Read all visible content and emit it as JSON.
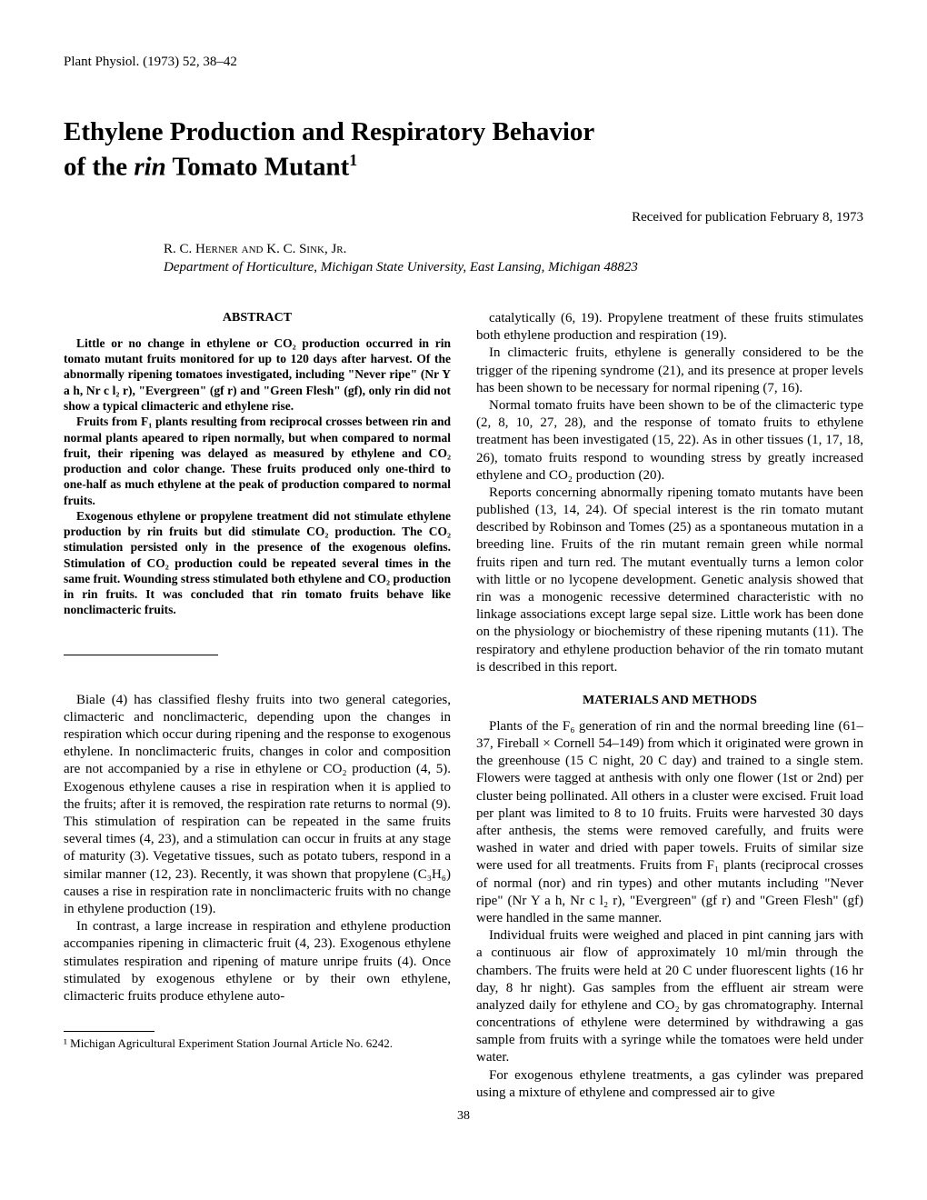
{
  "journal_header": "Plant Physiol. (1973) 52, 38–42",
  "title_line1": "Ethylene Production and Respiratory Behavior",
  "title_line2_prefix": "of the ",
  "title_line2_italic": "rin",
  "title_line2_suffix": " Tomato Mutant",
  "title_superscript": "1",
  "received": "Received for publication February 8, 1973",
  "authors": "R. C. Herner and K. C. Sink, Jr.",
  "affiliation": "Department of Horticulture, Michigan State University, East Lansing, Michigan 48823",
  "abstract_heading": "ABSTRACT",
  "abstract_p1": "Little or no change in ethylene or CO₂ production occurred in rin tomato mutant fruits monitored for up to 120 days after harvest. Of the abnormally ripening tomatoes investigated, including \"Never ripe\" (Nr Y a h, Nr c l₂ r), \"Evergreen\" (gf r) and \"Green Flesh\" (gf), only rin did not show a typical climacteric and ethylene rise.",
  "abstract_p2": "Fruits from F₁ plants resulting from reciprocal crosses between rin and normal plants apeared to ripen normally, but when compared to normal fruit, their ripening was delayed as measured by ethylene and CO₂ production and color change. These fruits produced only one-third to one-half as much ethylene at the peak of production compared to normal fruits.",
  "abstract_p3": "Exogenous ethylene or propylene treatment did not stimulate ethylene production by rin fruits but did stimulate CO₂ production. The CO₂ stimulation persisted only in the presence of the exogenous olefins. Stimulation of CO₂ production could be repeated several times in the same fruit. Wounding stress stimulated both ethylene and CO₂ production in rin fruits. It was concluded that rin tomato fruits behave like nonclimacteric fruits.",
  "intro_p1": "Biale (4) has classified fleshy fruits into two general categories, climacteric and nonclimacteric, depending upon the changes in respiration which occur during ripening and the response to exogenous ethylene. In nonclimacteric fruits, changes in color and composition are not accompanied by a rise in ethylene or CO₂ production (4, 5). Exogenous ethylene causes a rise in respiration when it is applied to the fruits; after it is removed, the respiration rate returns to normal (9). This stimulation of respiration can be repeated in the same fruits several times (4, 23), and a stimulation can occur in fruits at any stage of maturity (3). Vegetative tissues, such as potato tubers, respond in a similar manner (12, 23). Recently, it was shown that propylene (C₃H₆) causes a rise in respiration rate in nonclimacteric fruits with no change in ethylene production (19).",
  "intro_p2": "In contrast, a large increase in respiration and ethylene production accompanies ripening in climacteric fruit (4, 23). Exogenous ethylene stimulates respiration and ripening of mature unripe fruits (4). Once stimulated by exogenous ethylene or by their own ethylene, climacteric fruits produce ethylene auto-",
  "footnote_text": "¹ Michigan Agricultural Experiment Station Journal Article No. 6242.",
  "col2_p1": "catalytically (6, 19). Propylene treatment of these fruits stimulates both ethylene production and respiration (19).",
  "col2_p2": "In climacteric fruits, ethylene is generally considered to be the trigger of the ripening syndrome (21), and its presence at proper levels has been shown to be necessary for normal ripening (7, 16).",
  "col2_p3": "Normal tomato fruits have been shown to be of the climacteric type (2, 8, 10, 27, 28), and the response of tomato fruits to ethylene treatment has been investigated (15, 22). As in other tissues (1, 17, 18, 26), tomato fruits respond to wounding stress by greatly increased ethylene and CO₂ production (20).",
  "col2_p4": "Reports concerning abnormally ripening tomato mutants have been published (13, 14, 24). Of special interest is the rin tomato mutant described by Robinson and Tomes (25) as a spontaneous mutation in a breeding line. Fruits of the rin mutant remain green while normal fruits ripen and turn red. The mutant eventually turns a lemon color with little or no lycopene development. Genetic analysis showed that rin was a monogenic recessive determined characteristic with no linkage associations except large sepal size. Little work has been done on the physiology or biochemistry of these ripening mutants (11). The respiratory and ethylene production behavior of the rin tomato mutant is described in this report.",
  "methods_heading": "MATERIALS AND METHODS",
  "methods_p1": "Plants of the F₆ generation of rin and the normal breeding line (61–37, Fireball × Cornell 54–149) from which it originated were grown in the greenhouse (15 C night, 20 C day) and trained to a single stem. Flowers were tagged at anthesis with only one flower (1st or 2nd) per cluster being pollinated. All others in a cluster were excised. Fruit load per plant was limited to 8 to 10 fruits. Fruits were harvested 30 days after anthesis, the stems were removed carefully, and fruits were washed in water and dried with paper towels. Fruits of similar size were used for all treatments. Fruits from F₁ plants (reciprocal crosses of normal (nor) and rin types) and other mutants including \"Never ripe\" (Nr Y a h, Nr c l₂ r), \"Evergreen\" (gf r) and \"Green Flesh\" (gf) were handled in the same manner.",
  "methods_p2": "Individual fruits were weighed and placed in pint canning jars with a continuous air flow of approximately 10 ml/min through the chambers. The fruits were held at 20 C under fluorescent lights (16 hr day, 8 hr night). Gas samples from the effluent air stream were analyzed daily for ethylene and CO₂ by gas chromatography. Internal concentrations of ethylene were determined by withdrawing a gas sample from fruits with a syringe while the tomatoes were held under water.",
  "methods_p3": "For exogenous ethylene treatments, a gas cylinder was prepared using a mixture of ethylene and compressed air to give",
  "page_number": "38"
}
